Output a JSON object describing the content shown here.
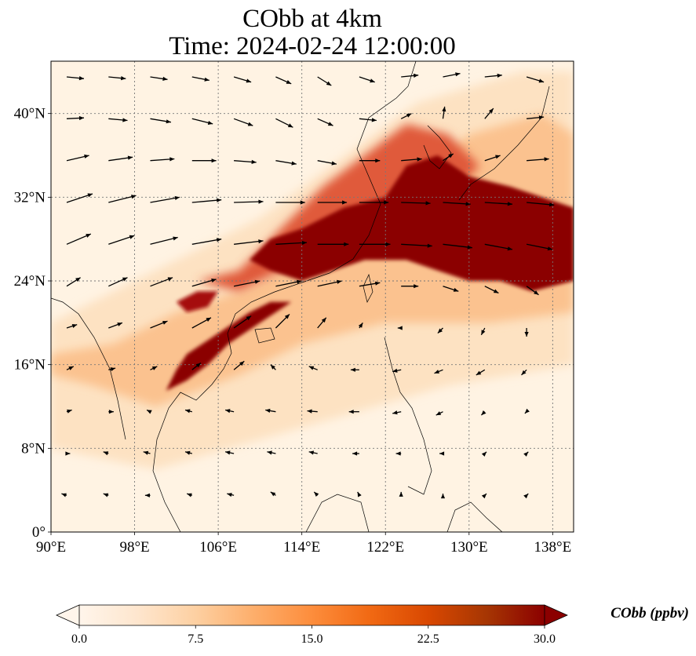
{
  "title": {
    "line1": "CObb at 4km",
    "line2": "Time: 2024-02-24 12:00:00"
  },
  "map": {
    "lon_range": [
      90,
      140
    ],
    "lat_range": [
      0,
      45
    ],
    "grid": "dotted",
    "lon_ticks": [
      {
        "value": 90,
        "label": "90°E"
      },
      {
        "value": 98,
        "label": "98°E"
      },
      {
        "value": 106,
        "label": "106°E"
      },
      {
        "value": 114,
        "label": "114°E"
      },
      {
        "value": 122,
        "label": "122°E"
      },
      {
        "value": 130,
        "label": "130°E"
      },
      {
        "value": 138,
        "label": "138°E"
      }
    ],
    "lat_ticks": [
      {
        "value": 0,
        "label": "0°"
      },
      {
        "value": 8,
        "label": "8°N"
      },
      {
        "value": 16,
        "label": "16°N"
      },
      {
        "value": 24,
        "label": "24°N"
      },
      {
        "value": 32,
        "label": "32°N"
      },
      {
        "value": 40,
        "label": "40°N"
      }
    ],
    "plumes": [
      {
        "level": "high",
        "color": "#8b0000",
        "points": [
          [
            114,
            29
          ],
          [
            118,
            31
          ],
          [
            122,
            32
          ],
          [
            124,
            35
          ],
          [
            127,
            36
          ],
          [
            130,
            34
          ],
          [
            134,
            33
          ],
          [
            140,
            31
          ],
          [
            140,
            24
          ],
          [
            136,
            23
          ],
          [
            133,
            24
          ],
          [
            130,
            24
          ],
          [
            127,
            25
          ],
          [
            124,
            26
          ],
          [
            120,
            26
          ],
          [
            117,
            25
          ],
          [
            114,
            24
          ],
          [
            111,
            25
          ],
          [
            109,
            26
          ],
          [
            111,
            28
          ]
        ]
      },
      {
        "level": "high",
        "color": "#8b0000",
        "points": [
          [
            103,
            17
          ],
          [
            106,
            19
          ],
          [
            109,
            21
          ],
          [
            111,
            22
          ],
          [
            113,
            22
          ],
          [
            110,
            20
          ],
          [
            107,
            18
          ],
          [
            105,
            16
          ],
          [
            103,
            14.5
          ],
          [
            101,
            13.5
          ],
          [
            102,
            15.5
          ]
        ]
      },
      {
        "level": "high",
        "color": "#a50f0f",
        "points": [
          [
            102,
            22
          ],
          [
            104,
            23
          ],
          [
            106,
            23
          ],
          [
            105,
            21.5
          ],
          [
            103,
            21
          ]
        ]
      },
      {
        "level": "mid",
        "color": "#e05a3a",
        "points": [
          [
            104,
            24
          ],
          [
            108,
            25
          ],
          [
            112,
            29
          ],
          [
            116,
            33
          ],
          [
            120,
            36
          ],
          [
            124,
            39
          ],
          [
            128,
            38
          ],
          [
            131,
            35
          ],
          [
            129,
            33
          ],
          [
            124,
            31
          ],
          [
            118,
            28
          ],
          [
            112,
            25
          ],
          [
            108,
            23
          ]
        ]
      },
      {
        "level": "low",
        "color": "#fbc28f",
        "points": [
          [
            90,
            17
          ],
          [
            96,
            18
          ],
          [
            102,
            21
          ],
          [
            108,
            23
          ],
          [
            116,
            27
          ],
          [
            124,
            33
          ],
          [
            130,
            38
          ],
          [
            137,
            40
          ],
          [
            140,
            38
          ],
          [
            140,
            21
          ],
          [
            132,
            20
          ],
          [
            122,
            20
          ],
          [
            114,
            18
          ],
          [
            108,
            15
          ],
          [
            100,
            12
          ],
          [
            94,
            14
          ],
          [
            90,
            15
          ]
        ]
      },
      {
        "level": "faint",
        "color": "#fde2c2",
        "points": [
          [
            90,
            20
          ],
          [
            98,
            24
          ],
          [
            110,
            30
          ],
          [
            125,
            41
          ],
          [
            135,
            44
          ],
          [
            140,
            44
          ],
          [
            140,
            16
          ],
          [
            128,
            14
          ],
          [
            114,
            10
          ],
          [
            100,
            6
          ],
          [
            90,
            8
          ]
        ]
      }
    ],
    "wind_arrows": [
      {
        "lon": 91.5,
        "lat": 43.5,
        "u": 1.0,
        "v": -0.1
      },
      {
        "lon": 95.5,
        "lat": 43.5,
        "u": 1.0,
        "v": -0.1
      },
      {
        "lon": 99.5,
        "lat": 43.5,
        "u": 1.0,
        "v": -0.15
      },
      {
        "lon": 103.5,
        "lat": 43.5,
        "u": 1.0,
        "v": -0.2
      },
      {
        "lon": 107.5,
        "lat": 43.5,
        "u": 1.0,
        "v": -0.3
      },
      {
        "lon": 111.5,
        "lat": 43.5,
        "u": 0.9,
        "v": -0.4
      },
      {
        "lon": 115.5,
        "lat": 43.5,
        "u": 0.8,
        "v": -0.5
      },
      {
        "lon": 119.5,
        "lat": 43.5,
        "u": 0.9,
        "v": -0.3
      },
      {
        "lon": 123.5,
        "lat": 43.5,
        "u": 1.0,
        "v": 0.1
      },
      {
        "lon": 127.5,
        "lat": 43.5,
        "u": 1.0,
        "v": 0.2
      },
      {
        "lon": 131.5,
        "lat": 43.5,
        "u": 1.0,
        "v": 0.1
      },
      {
        "lon": 135.5,
        "lat": 43.5,
        "u": 1.0,
        "v": -0.3
      },
      {
        "lon": 91.5,
        "lat": 39.5,
        "u": 1.0,
        "v": 0.05
      },
      {
        "lon": 95.5,
        "lat": 39.5,
        "u": 1.1,
        "v": -0.1
      },
      {
        "lon": 99.5,
        "lat": 39.5,
        "u": 1.2,
        "v": -0.2
      },
      {
        "lon": 103.5,
        "lat": 39.5,
        "u": 1.2,
        "v": -0.3
      },
      {
        "lon": 107.5,
        "lat": 39.5,
        "u": 1.1,
        "v": -0.4
      },
      {
        "lon": 111.5,
        "lat": 39.5,
        "u": 1.0,
        "v": -0.5
      },
      {
        "lon": 115.5,
        "lat": 39.5,
        "u": 0.9,
        "v": -0.4
      },
      {
        "lon": 119.5,
        "lat": 39.5,
        "u": 1.0,
        "v": -0.1
      },
      {
        "lon": 123.5,
        "lat": 39.5,
        "u": 0.6,
        "v": 0.3
      },
      {
        "lon": 127.5,
        "lat": 39.5,
        "u": 0.1,
        "v": 0.7
      },
      {
        "lon": 131.5,
        "lat": 39.5,
        "u": 0.5,
        "v": 0.6
      },
      {
        "lon": 135.5,
        "lat": 39.5,
        "u": 1.0,
        "v": 0.1
      },
      {
        "lon": 91.5,
        "lat": 35.5,
        "u": 1.3,
        "v": 0.3
      },
      {
        "lon": 95.5,
        "lat": 35.5,
        "u": 1.4,
        "v": 0.2
      },
      {
        "lon": 99.5,
        "lat": 35.5,
        "u": 1.4,
        "v": 0.1
      },
      {
        "lon": 103.5,
        "lat": 35.5,
        "u": 1.4,
        "v": 0.0
      },
      {
        "lon": 107.5,
        "lat": 35.5,
        "u": 1.3,
        "v": -0.1
      },
      {
        "lon": 111.5,
        "lat": 35.5,
        "u": 1.2,
        "v": -0.2
      },
      {
        "lon": 115.5,
        "lat": 35.5,
        "u": 1.1,
        "v": -0.2
      },
      {
        "lon": 119.5,
        "lat": 35.5,
        "u": 1.2,
        "v": 0.0
      },
      {
        "lon": 123.5,
        "lat": 35.5,
        "u": 1.2,
        "v": 0.1
      },
      {
        "lon": 127.5,
        "lat": 35.5,
        "u": 0.6,
        "v": 0.4
      },
      {
        "lon": 131.5,
        "lat": 35.5,
        "u": 0.9,
        "v": 0.3
      },
      {
        "lon": 135.5,
        "lat": 35.5,
        "u": 1.3,
        "v": 0.1
      },
      {
        "lon": 91.5,
        "lat": 31.5,
        "u": 1.5,
        "v": 0.5
      },
      {
        "lon": 95.5,
        "lat": 31.5,
        "u": 1.6,
        "v": 0.4
      },
      {
        "lon": 99.5,
        "lat": 31.5,
        "u": 1.7,
        "v": 0.3
      },
      {
        "lon": 103.5,
        "lat": 31.5,
        "u": 1.7,
        "v": 0.15
      },
      {
        "lon": 107.5,
        "lat": 31.5,
        "u": 1.7,
        "v": 0.05
      },
      {
        "lon": 111.5,
        "lat": 31.5,
        "u": 1.7,
        "v": 0.0
      },
      {
        "lon": 115.5,
        "lat": 31.5,
        "u": 1.7,
        "v": 0.0
      },
      {
        "lon": 119.5,
        "lat": 31.5,
        "u": 1.7,
        "v": 0.0
      },
      {
        "lon": 123.5,
        "lat": 31.5,
        "u": 1.7,
        "v": -0.05
      },
      {
        "lon": 127.5,
        "lat": 31.5,
        "u": 1.6,
        "v": -0.1
      },
      {
        "lon": 131.5,
        "lat": 31.5,
        "u": 1.6,
        "v": -0.1
      },
      {
        "lon": 135.5,
        "lat": 31.5,
        "u": 1.6,
        "v": -0.15
      },
      {
        "lon": 91.5,
        "lat": 27.5,
        "u": 1.4,
        "v": 0.6
      },
      {
        "lon": 95.5,
        "lat": 27.5,
        "u": 1.5,
        "v": 0.5
      },
      {
        "lon": 99.5,
        "lat": 27.5,
        "u": 1.6,
        "v": 0.4
      },
      {
        "lon": 103.5,
        "lat": 27.5,
        "u": 1.7,
        "v": 0.3
      },
      {
        "lon": 107.5,
        "lat": 27.5,
        "u": 1.7,
        "v": 0.2
      },
      {
        "lon": 111.5,
        "lat": 27.5,
        "u": 1.8,
        "v": 0.1
      },
      {
        "lon": 115.5,
        "lat": 27.5,
        "u": 1.8,
        "v": 0.0
      },
      {
        "lon": 119.5,
        "lat": 27.5,
        "u": 1.8,
        "v": 0.0
      },
      {
        "lon": 123.5,
        "lat": 27.5,
        "u": 1.8,
        "v": -0.1
      },
      {
        "lon": 127.5,
        "lat": 27.5,
        "u": 1.7,
        "v": -0.2
      },
      {
        "lon": 131.5,
        "lat": 27.5,
        "u": 1.6,
        "v": -0.3
      },
      {
        "lon": 135.5,
        "lat": 27.5,
        "u": 1.5,
        "v": -0.3
      },
      {
        "lon": 91.5,
        "lat": 23.5,
        "u": 0.8,
        "v": 0.5
      },
      {
        "lon": 95.5,
        "lat": 23.5,
        "u": 1.1,
        "v": 0.5
      },
      {
        "lon": 99.5,
        "lat": 23.5,
        "u": 1.3,
        "v": 0.5
      },
      {
        "lon": 103.5,
        "lat": 23.5,
        "u": 1.4,
        "v": 0.4
      },
      {
        "lon": 107.5,
        "lat": 23.5,
        "u": 1.5,
        "v": 0.3
      },
      {
        "lon": 111.5,
        "lat": 23.5,
        "u": 1.5,
        "v": 0.3
      },
      {
        "lon": 115.5,
        "lat": 23.5,
        "u": 1.4,
        "v": 0.3
      },
      {
        "lon": 119.5,
        "lat": 23.5,
        "u": 1.2,
        "v": 0.2
      },
      {
        "lon": 123.5,
        "lat": 23.5,
        "u": 1.0,
        "v": 0.0
      },
      {
        "lon": 127.5,
        "lat": 23.5,
        "u": 0.9,
        "v": -0.3
      },
      {
        "lon": 131.5,
        "lat": 23.5,
        "u": 0.8,
        "v": -0.4
      },
      {
        "lon": 135.5,
        "lat": 23.5,
        "u": 0.7,
        "v": -0.5
      },
      {
        "lon": 91.5,
        "lat": 19.5,
        "u": 0.6,
        "v": 0.2
      },
      {
        "lon": 95.5,
        "lat": 19.5,
        "u": 0.8,
        "v": 0.3
      },
      {
        "lon": 99.5,
        "lat": 19.5,
        "u": 1.0,
        "v": 0.4
      },
      {
        "lon": 103.5,
        "lat": 19.5,
        "u": 1.1,
        "v": 0.6
      },
      {
        "lon": 107.5,
        "lat": 19.5,
        "u": 1.0,
        "v": 0.7
      },
      {
        "lon": 111.5,
        "lat": 19.5,
        "u": 0.8,
        "v": 0.8
      },
      {
        "lon": 115.5,
        "lat": 19.5,
        "u": 0.5,
        "v": 0.6
      },
      {
        "lon": 119.5,
        "lat": 19.5,
        "u": 0.2,
        "v": 0.3
      },
      {
        "lon": 123.5,
        "lat": 19.5,
        "u": -0.2,
        "v": 0.0
      },
      {
        "lon": 127.5,
        "lat": 19.5,
        "u": -0.3,
        "v": -0.3
      },
      {
        "lon": 131.5,
        "lat": 19.5,
        "u": -0.2,
        "v": -0.4
      },
      {
        "lon": 135.5,
        "lat": 19.5,
        "u": 0.0,
        "v": -0.5
      },
      {
        "lon": 91.5,
        "lat": 15.5,
        "u": 0.4,
        "v": 0.2
      },
      {
        "lon": 95.5,
        "lat": 15.5,
        "u": 0.4,
        "v": 0.1
      },
      {
        "lon": 99.5,
        "lat": 15.5,
        "u": 0.4,
        "v": 0.2
      },
      {
        "lon": 103.5,
        "lat": 15.5,
        "u": 0.5,
        "v": 0.4
      },
      {
        "lon": 107.5,
        "lat": 15.5,
        "u": 0.6,
        "v": 0.5
      },
      {
        "lon": 111.5,
        "lat": 15.5,
        "u": -0.3,
        "v": 0.3
      },
      {
        "lon": 115.5,
        "lat": 15.5,
        "u": -0.5,
        "v": 0.2
      },
      {
        "lon": 119.5,
        "lat": 15.5,
        "u": -0.5,
        "v": 0.0
      },
      {
        "lon": 123.5,
        "lat": 15.5,
        "u": -0.5,
        "v": -0.1
      },
      {
        "lon": 127.5,
        "lat": 15.5,
        "u": -0.5,
        "v": -0.2
      },
      {
        "lon": 131.5,
        "lat": 15.5,
        "u": -0.5,
        "v": -0.3
      },
      {
        "lon": 135.5,
        "lat": 15.5,
        "u": -0.3,
        "v": -0.3
      },
      {
        "lon": 91.5,
        "lat": 11.5,
        "u": 0.3,
        "v": 0.1
      },
      {
        "lon": 95.5,
        "lat": 11.5,
        "u": 0.3,
        "v": 0.0
      },
      {
        "lon": 99.5,
        "lat": 11.5,
        "u": -0.2,
        "v": 0.1
      },
      {
        "lon": 103.5,
        "lat": 11.5,
        "u": -0.4,
        "v": 0.1
      },
      {
        "lon": 107.5,
        "lat": 11.5,
        "u": -0.5,
        "v": 0.1
      },
      {
        "lon": 111.5,
        "lat": 11.5,
        "u": -0.6,
        "v": 0.1
      },
      {
        "lon": 115.5,
        "lat": 11.5,
        "u": -0.6,
        "v": 0.05
      },
      {
        "lon": 119.5,
        "lat": 11.5,
        "u": -0.6,
        "v": 0.0
      },
      {
        "lon": 123.5,
        "lat": 11.5,
        "u": -0.5,
        "v": -0.1
      },
      {
        "lon": 127.5,
        "lat": 11.5,
        "u": -0.4,
        "v": -0.2
      },
      {
        "lon": 131.5,
        "lat": 11.5,
        "u": -0.2,
        "v": -0.2
      },
      {
        "lon": 135.5,
        "lat": 11.5,
        "u": -0.1,
        "v": -0.1
      },
      {
        "lon": 91.5,
        "lat": 7.5,
        "u": 0.2,
        "v": 0.0
      },
      {
        "lon": 95.5,
        "lat": 7.5,
        "u": -0.3,
        "v": 0.1
      },
      {
        "lon": 99.5,
        "lat": 7.5,
        "u": -0.4,
        "v": 0.1
      },
      {
        "lon": 103.5,
        "lat": 7.5,
        "u": -0.4,
        "v": 0.1
      },
      {
        "lon": 107.5,
        "lat": 7.5,
        "u": -0.5,
        "v": 0.1
      },
      {
        "lon": 111.5,
        "lat": 7.5,
        "u": -0.5,
        "v": 0.1
      },
      {
        "lon": 115.5,
        "lat": 7.5,
        "u": -0.5,
        "v": 0.1
      },
      {
        "lon": 119.5,
        "lat": 7.5,
        "u": -0.4,
        "v": 0.0
      },
      {
        "lon": 123.5,
        "lat": 7.5,
        "u": -0.3,
        "v": 0.0
      },
      {
        "lon": 127.5,
        "lat": 7.5,
        "u": -0.2,
        "v": 0.0
      },
      {
        "lon": 131.5,
        "lat": 7.5,
        "u": 0.1,
        "v": 0.1
      },
      {
        "lon": 135.5,
        "lat": 7.5,
        "u": 0.1,
        "v": 0.1
      },
      {
        "lon": 91.5,
        "lat": 3.5,
        "u": -0.3,
        "v": 0.1
      },
      {
        "lon": 95.5,
        "lat": 3.5,
        "u": -0.3,
        "v": 0.1
      },
      {
        "lon": 99.5,
        "lat": 3.5,
        "u": -0.3,
        "v": 0.0
      },
      {
        "lon": 103.5,
        "lat": 3.5,
        "u": -0.3,
        "v": 0.1
      },
      {
        "lon": 107.5,
        "lat": 3.5,
        "u": -0.4,
        "v": 0.1
      },
      {
        "lon": 111.5,
        "lat": 3.5,
        "u": -0.3,
        "v": 0.2
      },
      {
        "lon": 115.5,
        "lat": 3.5,
        "u": -0.2,
        "v": 0.2
      },
      {
        "lon": 119.5,
        "lat": 3.5,
        "u": -0.1,
        "v": 0.2
      },
      {
        "lon": 123.5,
        "lat": 3.5,
        "u": 0.0,
        "v": 0.2
      },
      {
        "lon": 127.5,
        "lat": 3.5,
        "u": 0.0,
        "v": 0.1
      },
      {
        "lon": 131.5,
        "lat": 3.5,
        "u": 0.1,
        "v": 0.1
      },
      {
        "lon": 135.5,
        "lat": 3.5,
        "u": 0.1,
        "v": 0.1
      }
    ]
  },
  "colorbar": {
    "label": "CObb (ppbv)",
    "range": [
      0,
      30
    ],
    "extend": "both",
    "colormap": [
      "#fff5eb",
      "#fee6ce",
      "#fdd0a2",
      "#fdae6b",
      "#fd8d3c",
      "#f16913",
      "#d94801",
      "#a63603",
      "#8b0000"
    ],
    "ticks": [
      {
        "value": 0,
        "label": "0.0"
      },
      {
        "value": 7.5,
        "label": "7.5"
      },
      {
        "value": 15,
        "label": "15.0"
      },
      {
        "value": 22.5,
        "label": "22.5"
      },
      {
        "value": 30,
        "label": "30.0"
      }
    ]
  }
}
